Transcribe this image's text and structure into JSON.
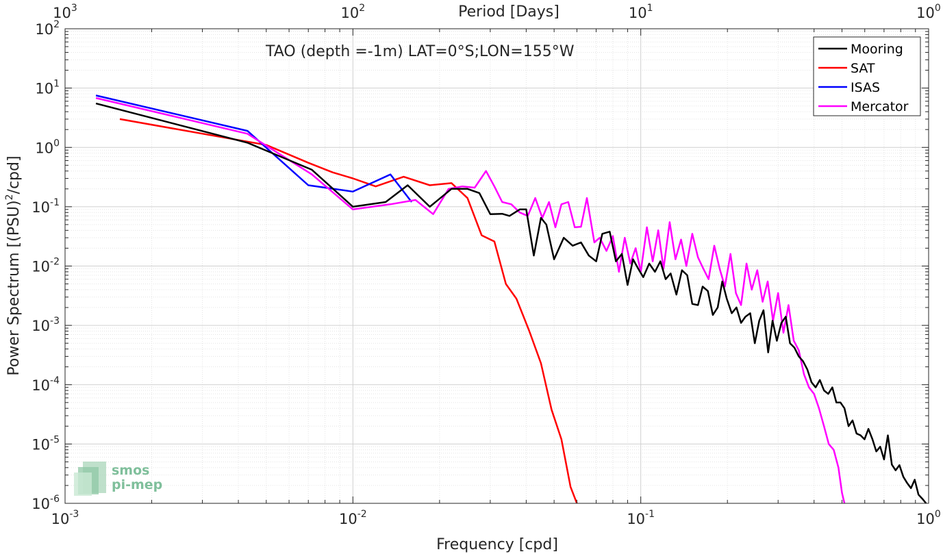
{
  "chart_data": {
    "type": "line",
    "title": "TAO (depth =-1m) LAT=0°S;LON=155°W",
    "xlabel": "Frequency [cpd]",
    "ylabel_main": "Power Spectrum [(PSU)",
    "ylabel_sup": "2",
    "ylabel_tail": "/cpd]",
    "top_xlabel": "Period [Days]",
    "x_scale": "log",
    "y_scale": "log",
    "xlim": [
      0.001,
      1
    ],
    "ylim": [
      1e-06,
      100
    ],
    "grid": true,
    "legend_position": "top-right",
    "x_ticks": [
      {
        "value": 0.001,
        "base": "10",
        "exp": "-3"
      },
      {
        "value": 0.01,
        "base": "10",
        "exp": "-2"
      },
      {
        "value": 0.1,
        "base": "10",
        "exp": "-1"
      },
      {
        "value": 1,
        "base": "10",
        "exp": "0"
      }
    ],
    "y_ticks": [
      {
        "value": 1e-06,
        "base": "10",
        "exp": "-6"
      },
      {
        "value": 1e-05,
        "base": "10",
        "exp": "-5"
      },
      {
        "value": 0.0001,
        "base": "10",
        "exp": "-4"
      },
      {
        "value": 0.001,
        "base": "10",
        "exp": "-3"
      },
      {
        "value": 0.01,
        "base": "10",
        "exp": "-2"
      },
      {
        "value": 0.1,
        "base": "10",
        "exp": "-1"
      },
      {
        "value": 1,
        "base": "10",
        "exp": "0"
      },
      {
        "value": 10,
        "base": "10",
        "exp": "1"
      },
      {
        "value": 100,
        "base": "10",
        "exp": "2"
      }
    ],
    "top_ticks": [
      {
        "value": 0.001,
        "base": "10",
        "exp": "3"
      },
      {
        "value": 0.01,
        "base": "10",
        "exp": "2"
      },
      {
        "value": 0.1,
        "base": "10",
        "exp": "1"
      },
      {
        "value": 1,
        "base": "10",
        "exp": "0"
      }
    ],
    "series": [
      {
        "name": "Mooring",
        "color": "#000000",
        "x": [
          0.00128,
          0.0043,
          0.0072,
          0.01,
          0.013,
          0.0155,
          0.0185,
          0.022,
          0.025,
          0.0275,
          0.03,
          0.033,
          0.035,
          0.038,
          0.04,
          0.0425,
          0.045,
          0.047,
          0.05,
          0.054,
          0.058,
          0.062,
          0.066,
          0.07,
          0.0735,
          0.078,
          0.082,
          0.086,
          0.09,
          0.094,
          0.098,
          0.102,
          0.107,
          0.112,
          0.117,
          0.122,
          0.127,
          0.133,
          0.139,
          0.145,
          0.151,
          0.158,
          0.164,
          0.171,
          0.178,
          0.185,
          0.192,
          0.199,
          0.207,
          0.215,
          0.223,
          0.231,
          0.24,
          0.249,
          0.258,
          0.267,
          0.277,
          0.287,
          0.297,
          0.308,
          0.319,
          0.33,
          0.342,
          0.354,
          0.366,
          0.379,
          0.392,
          0.405,
          0.419,
          0.433,
          0.448,
          0.463,
          0.478,
          0.494,
          0.51,
          0.527,
          0.544,
          0.562,
          0.58,
          0.599,
          0.618,
          0.638,
          0.658,
          0.679,
          0.7,
          0.722,
          0.745,
          0.768,
          0.792,
          0.817,
          0.842,
          0.868,
          0.895,
          0.922,
          0.95,
          0.98
        ],
        "y": [
          5.5,
          1.2,
          0.42,
          0.1,
          0.12,
          0.23,
          0.1,
          0.2,
          0.2,
          0.17,
          0.075,
          0.076,
          0.07,
          0.09,
          0.09,
          0.015,
          0.065,
          0.05,
          0.013,
          0.03,
          0.022,
          0.025,
          0.015,
          0.012,
          0.035,
          0.038,
          0.012,
          0.016,
          0.0048,
          0.013,
          0.009,
          0.0065,
          0.011,
          0.008,
          0.012,
          0.006,
          0.0075,
          0.0033,
          0.0085,
          0.007,
          0.0023,
          0.0022,
          0.0045,
          0.0038,
          0.0015,
          0.002,
          0.0055,
          0.0028,
          0.0016,
          0.002,
          0.0011,
          0.0014,
          0.0016,
          0.0005,
          0.0012,
          0.0018,
          0.00035,
          0.0012,
          0.00055,
          0.0011,
          0.0014,
          0.0005,
          0.00042,
          0.0003,
          0.00025,
          0.00018,
          0.00011,
          9e-05,
          0.00012,
          8e-05,
          7e-05,
          9e-05,
          5e-05,
          5e-05,
          4e-05,
          2e-05,
          2.5e-05,
          1.5e-05,
          1.4e-05,
          1.2e-05,
          1.8e-05,
          1.2e-05,
          7.5e-06,
          9e-06,
          5.5e-06,
          1.4e-05,
          4.5e-06,
          3.6e-06,
          4.4e-06,
          2.8e-06,
          2.2e-06,
          1.8e-06,
          2.5e-06,
          1.4e-06,
          1.2e-06,
          1e-06
        ]
      },
      {
        "name": "SAT",
        "color": "#ff0000",
        "x": [
          0.00155,
          0.005,
          0.007,
          0.0085,
          0.01,
          0.012,
          0.015,
          0.0185,
          0.022,
          0.025,
          0.028,
          0.031,
          0.034,
          0.037,
          0.041,
          0.045,
          0.049,
          0.053,
          0.057,
          0.06
        ],
        "y": [
          3.0,
          1.1,
          0.55,
          0.38,
          0.3,
          0.22,
          0.32,
          0.23,
          0.25,
          0.14,
          0.033,
          0.026,
          0.005,
          0.0028,
          0.0008,
          0.00023,
          3.8e-05,
          1.2e-05,
          1.9e-06,
          8e-07
        ]
      },
      {
        "name": "ISAS",
        "color": "#0000ff",
        "x": [
          0.00128,
          0.0043,
          0.007,
          0.01,
          0.0135,
          0.016
        ],
        "y": [
          7.5,
          1.9,
          0.23,
          0.18,
          0.35,
          0.12
        ]
      },
      {
        "name": "Mercator",
        "color": "#ff00ff",
        "x": [
          0.00128,
          0.0043,
          0.0072,
          0.01,
          0.0135,
          0.0165,
          0.019,
          0.0215,
          0.024,
          0.0265,
          0.029,
          0.031,
          0.033,
          0.0355,
          0.038,
          0.0405,
          0.043,
          0.0455,
          0.048,
          0.0505,
          0.053,
          0.056,
          0.059,
          0.062,
          0.065,
          0.069,
          0.072,
          0.076,
          0.08,
          0.084,
          0.088,
          0.092,
          0.096,
          0.1,
          0.105,
          0.11,
          0.115,
          0.12,
          0.126,
          0.132,
          0.138,
          0.144,
          0.151,
          0.158,
          0.165,
          0.172,
          0.18,
          0.188,
          0.196,
          0.205,
          0.214,
          0.223,
          0.233,
          0.243,
          0.254,
          0.265,
          0.276,
          0.288,
          0.3,
          0.313,
          0.326,
          0.34,
          0.354,
          0.369,
          0.384,
          0.4,
          0.416,
          0.433,
          0.45,
          0.468,
          0.486,
          0.5,
          0.51
        ],
        "y": [
          6.8,
          1.7,
          0.35,
          0.09,
          0.11,
          0.13,
          0.075,
          0.2,
          0.22,
          0.21,
          0.4,
          0.22,
          0.12,
          0.11,
          0.08,
          0.07,
          0.14,
          0.065,
          0.12,
          0.045,
          0.11,
          0.12,
          0.045,
          0.046,
          0.14,
          0.025,
          0.03,
          0.018,
          0.032,
          0.008,
          0.03,
          0.011,
          0.02,
          0.008,
          0.045,
          0.012,
          0.04,
          0.009,
          0.055,
          0.013,
          0.028,
          0.01,
          0.035,
          0.014,
          0.009,
          0.006,
          0.022,
          0.009,
          0.0045,
          0.016,
          0.0035,
          0.0022,
          0.011,
          0.004,
          0.0085,
          0.0025,
          0.0055,
          0.0012,
          0.0035,
          0.00075,
          0.0022,
          0.00055,
          0.00038,
          0.00015,
          9e-05,
          7e-05,
          4e-05,
          2e-05,
          1e-05,
          8e-06,
          4e-06,
          1.5e-06,
          9e-07
        ]
      }
    ]
  },
  "logo": {
    "line1": "smos",
    "line2": "pi-mep"
  }
}
